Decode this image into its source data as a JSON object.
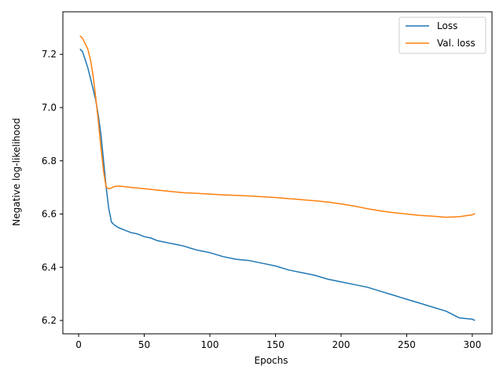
{
  "chart_data": {
    "type": "line",
    "title": "",
    "xlabel": "Epochs",
    "ylabel": "Negative log-likelihood",
    "xlim": [
      -12,
      315
    ],
    "ylim": [
      6.15,
      7.36
    ],
    "xticks": [
      0,
      50,
      100,
      150,
      200,
      250,
      300
    ],
    "yticks": [
      6.2,
      6.4,
      6.6,
      6.8,
      7.0,
      7.2
    ],
    "ytick_labels": [
      "6.2",
      "6.4",
      "6.6",
      "6.8",
      "7.0",
      "7.2"
    ],
    "grid": false,
    "legend": "top-right",
    "series": [
      {
        "name": "Loss",
        "color": "#1f77b4",
        "x": [
          1,
          3,
          5,
          7,
          9,
          11,
          13,
          15,
          17,
          19,
          21,
          23,
          25,
          27,
          30,
          35,
          40,
          45,
          50,
          55,
          60,
          65,
          70,
          75,
          80,
          85,
          90,
          95,
          100,
          110,
          120,
          130,
          140,
          150,
          160,
          170,
          180,
          190,
          200,
          210,
          220,
          230,
          240,
          250,
          260,
          270,
          280,
          290,
          300,
          302
        ],
        "y": [
          7.22,
          7.21,
          7.18,
          7.15,
          7.11,
          7.07,
          7.03,
          6.97,
          6.9,
          6.8,
          6.7,
          6.62,
          6.57,
          6.56,
          6.55,
          6.54,
          6.53,
          6.525,
          6.515,
          6.51,
          6.5,
          6.495,
          6.49,
          6.485,
          6.48,
          6.472,
          6.465,
          6.46,
          6.455,
          6.44,
          6.43,
          6.425,
          6.415,
          6.405,
          6.39,
          6.38,
          6.37,
          6.355,
          6.345,
          6.335,
          6.325,
          6.31,
          6.295,
          6.28,
          6.265,
          6.25,
          6.235,
          6.21,
          6.205,
          6.2
        ]
      },
      {
        "name": "Val. loss",
        "color": "#ff7f0e",
        "x": [
          1,
          3,
          5,
          7,
          9,
          11,
          13,
          15,
          17,
          19,
          21,
          23,
          25,
          27,
          30,
          35,
          40,
          50,
          60,
          70,
          80,
          90,
          100,
          110,
          120,
          130,
          140,
          150,
          160,
          170,
          180,
          190,
          200,
          210,
          220,
          230,
          240,
          250,
          260,
          270,
          280,
          290,
          300,
          302
        ],
        "y": [
          7.27,
          7.26,
          7.24,
          7.22,
          7.18,
          7.12,
          7.04,
          6.95,
          6.85,
          6.76,
          6.7,
          6.695,
          6.698,
          6.703,
          6.705,
          6.703,
          6.7,
          6.695,
          6.69,
          6.685,
          6.68,
          6.678,
          6.675,
          6.672,
          6.67,
          6.668,
          6.665,
          6.662,
          6.658,
          6.654,
          6.65,
          6.645,
          6.638,
          6.63,
          6.62,
          6.612,
          6.605,
          6.6,
          6.595,
          6.592,
          6.588,
          6.59,
          6.597,
          6.602
        ]
      }
    ]
  }
}
